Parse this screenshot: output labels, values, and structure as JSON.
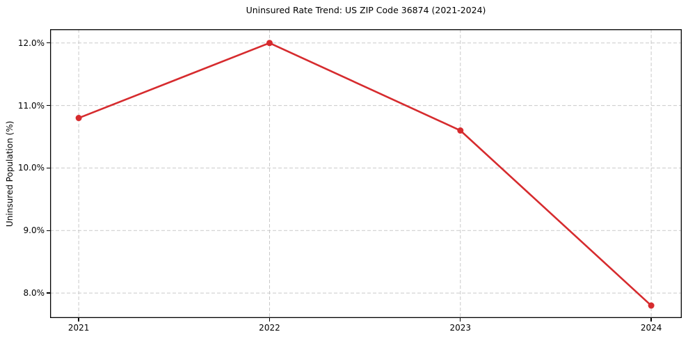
{
  "chart_data": {
    "type": "line",
    "title": "Uninsured Rate Trend: US ZIP Code 36874 (2021-2024)",
    "xlabel": "",
    "ylabel": "Uninsured Population (%)",
    "x": [
      2021,
      2022,
      2023,
      2024
    ],
    "values": [
      10.8,
      12.0,
      10.6,
      7.8
    ],
    "xlim": [
      2020.85,
      2024.16
    ],
    "ylim": [
      7.6,
      12.22
    ],
    "xticks": [
      {
        "value": 2021,
        "label": "2021"
      },
      {
        "value": 2022,
        "label": "2022"
      },
      {
        "value": 2023,
        "label": "2023"
      },
      {
        "value": 2024,
        "label": "2024"
      }
    ],
    "yticks": [
      {
        "value": 8.0,
        "label": "8.0%"
      },
      {
        "value": 9.0,
        "label": "9.0%"
      },
      {
        "value": 10.0,
        "label": "10.0%"
      },
      {
        "value": 11.0,
        "label": "11.0%"
      },
      {
        "value": 12.0,
        "label": "12.0%"
      }
    ],
    "grid": true,
    "legend": "none",
    "colors": {
      "line": "#d62b2e",
      "marker": "#d62b2e",
      "grid": "#c9c9c9",
      "spine": "#000000",
      "background": "#ffffff"
    }
  }
}
